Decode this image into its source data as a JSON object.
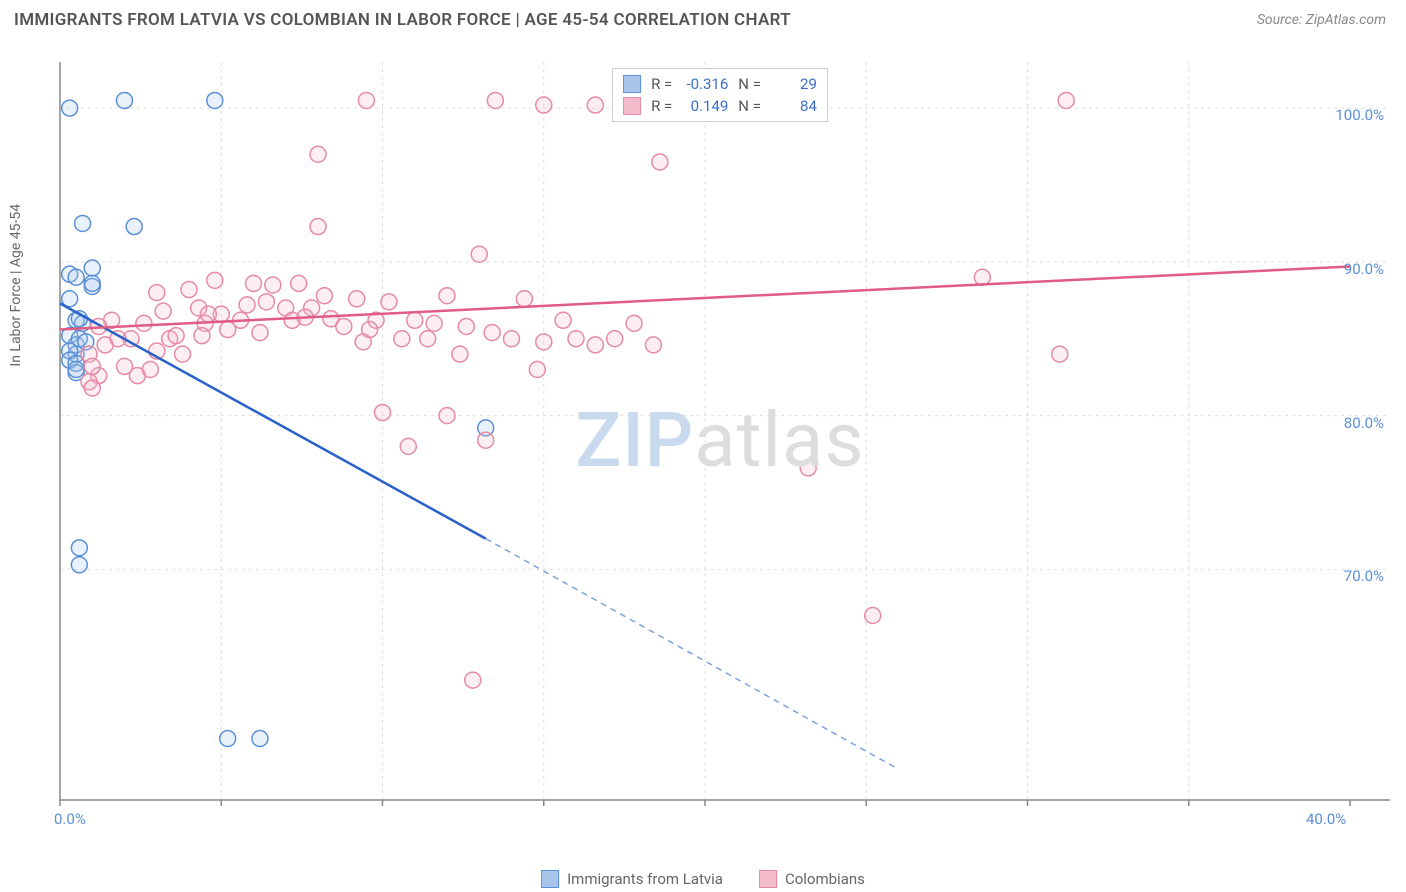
{
  "header": {
    "title": "IMMIGRANTS FROM LATVIA VS COLOMBIAN IN LABOR FORCE | AGE 45-54 CORRELATION CHART",
    "source": "Source: ZipAtlas.com"
  },
  "watermark": {
    "part1": "ZIP",
    "part2": "atlas"
  },
  "chart": {
    "type": "scatter-with-regression",
    "y_axis_label": "In Labor Force | Age 45-54",
    "xlim": [
      0,
      40
    ],
    "ylim": [
      55,
      103
    ],
    "x_ticks": [
      {
        "value": 0,
        "label": "0.0%"
      },
      {
        "value": 40,
        "label": "40.0%"
      }
    ],
    "y_ticks": [
      {
        "value": 70,
        "label": "70.0%"
      },
      {
        "value": 80,
        "label": "80.0%"
      },
      {
        "value": 90,
        "label": "90.0%"
      },
      {
        "value": 100,
        "label": "100.0%"
      }
    ],
    "x_gridlines": [
      5,
      10,
      15,
      20,
      25,
      30,
      35
    ],
    "y_gridlines": [
      70,
      80,
      90,
      100
    ],
    "grid_color": "#dddddd",
    "axis_line_color": "#888888",
    "tick_label_color": "#5b8fd6",
    "marker_radius": 8,
    "marker_stroke_width": 1.5,
    "marker_fill_opacity": 0.25,
    "line_width": 2.5,
    "series": [
      {
        "name": "Immigrants from Latvia",
        "color_stroke": "#5b8fd6",
        "color_fill": "#a9c6ea",
        "line_color": "#2a62c9",
        "stats": {
          "R": "-0.316",
          "N": "29"
        },
        "points": [
          [
            0.3,
            100
          ],
          [
            2.0,
            100.5
          ],
          [
            4.8,
            100.5
          ],
          [
            0.7,
            92.5
          ],
          [
            0.3,
            89.2
          ],
          [
            0.5,
            89.0
          ],
          [
            2.3,
            92.3
          ],
          [
            1.0,
            89.6
          ],
          [
            0.3,
            85.2
          ],
          [
            0.5,
            86.2
          ],
          [
            0.5,
            84.6
          ],
          [
            0.5,
            84.0
          ],
          [
            0.3,
            84.2
          ],
          [
            0.3,
            83.6
          ],
          [
            0.5,
            83.4
          ],
          [
            0.3,
            87.6
          ],
          [
            13.2,
            79.2
          ],
          [
            5.2,
            59.0
          ],
          [
            6.2,
            59.0
          ],
          [
            0.6,
            70.3
          ],
          [
            0.6,
            71.4
          ],
          [
            1.0,
            88.4
          ],
          [
            0.7,
            86.0
          ],
          [
            0.5,
            82.8
          ],
          [
            0.5,
            83.0
          ],
          [
            0.6,
            85.0
          ],
          [
            0.6,
            86.3
          ],
          [
            1.0,
            88.6
          ],
          [
            0.8,
            84.8
          ]
        ],
        "regression": {
          "x1": 0,
          "y1": 87.3,
          "x2": 13.2,
          "y2": 72.0,
          "ext_x2": 26,
          "ext_y2": 57.0
        }
      },
      {
        "name": "Colombians",
        "color_stroke": "#e68aa5",
        "color_fill": "#f3bccb",
        "line_color": "#e05c84",
        "stats": {
          "R": "0.149",
          "N": "84"
        },
        "points": [
          [
            9.5,
            100.5
          ],
          [
            13.5,
            100.5
          ],
          [
            15.0,
            100.2
          ],
          [
            16.6,
            100.2
          ],
          [
            20.0,
            100.5
          ],
          [
            31.2,
            100.5
          ],
          [
            18.6,
            96.5
          ],
          [
            8.0,
            97.0
          ],
          [
            8.0,
            92.3
          ],
          [
            4.0,
            88.2
          ],
          [
            4.3,
            87.0
          ],
          [
            4.5,
            86.0
          ],
          [
            4.8,
            88.8
          ],
          [
            5.0,
            86.6
          ],
          [
            5.2,
            85.6
          ],
          [
            5.8,
            87.2
          ],
          [
            6.4,
            87.4
          ],
          [
            6.6,
            88.5
          ],
          [
            7.0,
            87.0
          ],
          [
            7.2,
            86.2
          ],
          [
            7.4,
            88.6
          ],
          [
            7.8,
            87.0
          ],
          [
            8.2,
            87.8
          ],
          [
            8.4,
            86.3
          ],
          [
            8.8,
            85.8
          ],
          [
            9.2,
            87.6
          ],
          [
            9.4,
            84.8
          ],
          [
            9.8,
            86.2
          ],
          [
            10.2,
            87.4
          ],
          [
            10.6,
            85.0
          ],
          [
            11.0,
            86.2
          ],
          [
            11.4,
            85.0
          ],
          [
            12.0,
            87.8
          ],
          [
            12.4,
            84.0
          ],
          [
            13.0,
            90.5
          ],
          [
            13.4,
            85.4
          ],
          [
            14.0,
            85.0
          ],
          [
            14.4,
            87.6
          ],
          [
            15.0,
            84.8
          ],
          [
            15.6,
            86.2
          ],
          [
            16.0,
            85.0
          ],
          [
            16.6,
            84.6
          ],
          [
            17.2,
            85.0
          ],
          [
            17.8,
            86.0
          ],
          [
            28.6,
            89.0
          ],
          [
            31.0,
            84.0
          ],
          [
            10.0,
            80.2
          ],
          [
            12.0,
            80.0
          ],
          [
            10.8,
            78.0
          ],
          [
            13.2,
            78.4
          ],
          [
            23.2,
            76.6
          ],
          [
            25.2,
            67.0
          ],
          [
            12.8,
            62.8
          ],
          [
            2.2,
            85.0
          ],
          [
            2.6,
            86.0
          ],
          [
            3.0,
            84.2
          ],
          [
            3.2,
            86.8
          ],
          [
            3.4,
            85.0
          ],
          [
            3.8,
            84.0
          ],
          [
            1.4,
            84.6
          ],
          [
            1.6,
            86.2
          ],
          [
            1.8,
            85.0
          ],
          [
            2.0,
            83.2
          ],
          [
            1.2,
            82.6
          ],
          [
            1.2,
            85.8
          ],
          [
            0.9,
            84.0
          ],
          [
            0.9,
            82.2
          ],
          [
            1.0,
            83.2
          ],
          [
            1.0,
            81.8
          ],
          [
            2.4,
            82.6
          ],
          [
            2.8,
            83.0
          ],
          [
            4.4,
            85.2
          ],
          [
            4.6,
            86.6
          ],
          [
            3.0,
            88.0
          ],
          [
            3.6,
            85.2
          ],
          [
            5.6,
            86.2
          ],
          [
            6.2,
            85.4
          ],
          [
            7.6,
            86.4
          ],
          [
            6.0,
            88.6
          ],
          [
            11.6,
            86.0
          ],
          [
            12.6,
            85.8
          ],
          [
            9.6,
            85.6
          ],
          [
            14.8,
            83.0
          ],
          [
            18.4,
            84.6
          ]
        ],
        "regression": {
          "x1": 0,
          "y1": 85.6,
          "x2": 40,
          "y2": 89.7,
          "ext_x2": 40,
          "ext_y2": 89.7
        }
      }
    ]
  },
  "legend": {
    "items": [
      {
        "label": "Immigrants from Latvia",
        "fill": "#a9c6ea",
        "stroke": "#5b8fd6"
      },
      {
        "label": "Colombians",
        "fill": "#f3bccb",
        "stroke": "#e68aa5"
      }
    ]
  }
}
